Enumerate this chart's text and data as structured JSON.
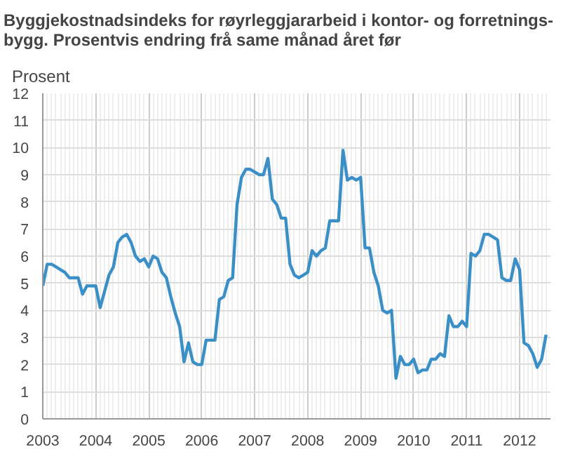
{
  "chart_data": {
    "type": "line",
    "title": "Byggjekostnadsindeks for røyrleggjararbeid i kontor- og forretnings-\nbygg. Prosentvis endring frå same månad året før",
    "ylabel": "Prosent",
    "x": [
      "2003-01",
      "2003-02",
      "2003-03",
      "2003-04",
      "2003-05",
      "2003-06",
      "2003-07",
      "2003-08",
      "2003-09",
      "2003-10",
      "2003-11",
      "2003-12",
      "2004-01",
      "2004-02",
      "2004-03",
      "2004-04",
      "2004-05",
      "2004-06",
      "2004-07",
      "2004-08",
      "2004-09",
      "2004-10",
      "2004-11",
      "2004-12",
      "2005-01",
      "2005-02",
      "2005-03",
      "2005-04",
      "2005-05",
      "2005-06",
      "2005-07",
      "2005-08",
      "2005-09",
      "2005-10",
      "2005-11",
      "2005-12",
      "2006-01",
      "2006-02",
      "2006-03",
      "2006-04",
      "2006-05",
      "2006-06",
      "2006-07",
      "2006-08",
      "2006-09",
      "2006-10",
      "2006-11",
      "2006-12",
      "2007-01",
      "2007-02",
      "2007-03",
      "2007-04",
      "2007-05",
      "2007-06",
      "2007-07",
      "2007-08",
      "2007-09",
      "2007-10",
      "2007-11",
      "2007-12",
      "2008-01",
      "2008-02",
      "2008-03",
      "2008-04",
      "2008-05",
      "2008-06",
      "2008-07",
      "2008-08",
      "2008-09",
      "2008-10",
      "2008-11",
      "2008-12",
      "2009-01",
      "2009-02",
      "2009-03",
      "2009-04",
      "2009-05",
      "2009-06",
      "2009-07",
      "2009-08",
      "2009-09",
      "2009-10",
      "2009-11",
      "2009-12",
      "2010-01",
      "2010-02",
      "2010-03",
      "2010-04",
      "2010-05",
      "2010-06",
      "2010-07",
      "2010-08",
      "2010-09",
      "2010-10",
      "2010-11",
      "2010-12",
      "2011-01",
      "2011-02",
      "2011-03",
      "2011-04",
      "2011-05",
      "2011-06",
      "2011-07",
      "2011-08",
      "2011-09",
      "2011-10",
      "2011-11",
      "2011-12",
      "2012-01",
      "2012-02",
      "2012-03",
      "2012-04",
      "2012-05",
      "2012-06",
      "2012-07"
    ],
    "series": [
      {
        "color": "#3a8fc6",
        "values": [
          4.9,
          5.7,
          5.7,
          5.6,
          5.5,
          5.4,
          5.2,
          5.2,
          5.2,
          4.6,
          4.9,
          4.9,
          4.9,
          4.1,
          4.7,
          5.3,
          5.6,
          6.5,
          6.7,
          6.8,
          6.5,
          6.0,
          5.8,
          5.9,
          5.6,
          6.0,
          5.9,
          5.4,
          5.2,
          4.5,
          3.9,
          3.4,
          2.1,
          2.8,
          2.1,
          2.0,
          2.0,
          2.9,
          2.9,
          2.9,
          4.4,
          4.5,
          5.1,
          5.2,
          7.9,
          8.9,
          9.2,
          9.2,
          9.1,
          9.0,
          9.0,
          9.6,
          8.1,
          7.9,
          7.4,
          7.4,
          5.7,
          5.3,
          5.2,
          5.3,
          5.4,
          6.2,
          6.0,
          6.2,
          6.3,
          7.3,
          7.3,
          7.3,
          9.9,
          8.8,
          8.9,
          8.8,
          8.9,
          6.3,
          6.3,
          5.4,
          4.9,
          4.0,
          3.9,
          4.0,
          1.5,
          2.3,
          2.0,
          2.0,
          2.2,
          1.7,
          1.8,
          1.8,
          2.2,
          2.2,
          2.4,
          2.3,
          3.8,
          3.4,
          3.4,
          3.6,
          3.4,
          6.1,
          6.0,
          6.2,
          6.8,
          6.8,
          6.7,
          6.6,
          5.2,
          5.1,
          5.1,
          5.9,
          5.5,
          2.8,
          2.7,
          2.4,
          1.9,
          2.2,
          3.1
        ]
      }
    ],
    "xlim": [
      "2003-01",
      "2012-08"
    ],
    "xticks": [
      "2003",
      "2004",
      "2005",
      "2006",
      "2007",
      "2008",
      "2009",
      "2010",
      "2011",
      "2012"
    ],
    "ylim": [
      0,
      12
    ],
    "yticks": [
      0,
      1,
      2,
      3,
      4,
      5,
      6,
      7,
      8,
      9,
      10,
      11,
      12
    ],
    "grid": true,
    "marker": "none",
    "line_style": "solid"
  }
}
